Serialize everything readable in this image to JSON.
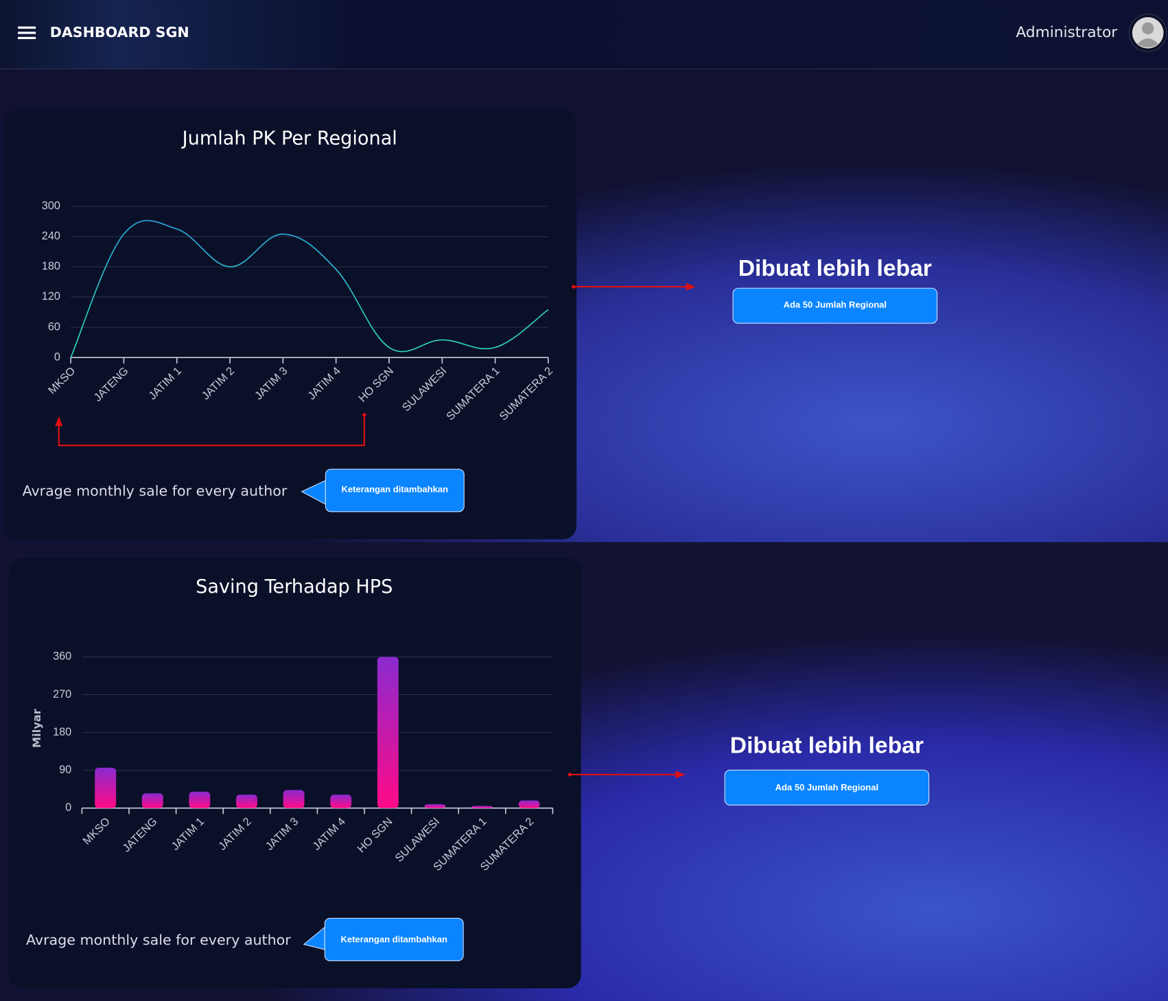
{
  "header": {
    "title": "DASHBOARD SGN",
    "user": "Administrator"
  },
  "chart_data": [
    {
      "type": "line",
      "title": "Jumlah PK Per Regional",
      "categories": [
        "MKSO",
        "JATENG",
        "JATIM 1",
        "JATIM 2",
        "JATIM 3",
        "JATIM 4",
        "HO SGN",
        "SULAWESI",
        "SUMATERA 1",
        "SUMATERA 2"
      ],
      "values": [
        0,
        245,
        255,
        180,
        245,
        175,
        20,
        35,
        20,
        95
      ],
      "color": "#2aa8e0",
      "color_end": "#2ee0b0",
      "ylim": [
        0,
        300
      ],
      "yticks": [
        0,
        60,
        120,
        180,
        240,
        300
      ],
      "grid": true,
      "caption": "Avrage monthly sale for every author"
    },
    {
      "type": "bar",
      "title": "Saving Terhadap HPS",
      "y_label": "Milyar",
      "categories": [
        "MKSO",
        "JATENG",
        "JATIM 1",
        "JATIM 2",
        "JATIM 3",
        "JATIM 4",
        "HO SGN",
        "SULAWESI",
        "SUMATERA 1",
        "SUMATERA 2"
      ],
      "values": [
        96,
        35,
        39,
        32,
        43,
        32,
        360,
        9,
        5,
        18
      ],
      "color": "#ff0a86",
      "color_top": "#8a2bd0",
      "ylim": [
        0,
        360
      ],
      "yticks": [
        0,
        90,
        180,
        270,
        360
      ],
      "grid": true,
      "caption": "Avrage monthly sale for every author"
    }
  ],
  "annotations": [
    {
      "note": "Dibuat lebih lebar",
      "button": "Ada 50 Jumlah Regional",
      "callout": "Keterangan ditambahkan"
    },
    {
      "note": "Dibuat lebih lebar",
      "button": "Ada 50 Jumlah Regional",
      "callout": "Keterangan ditambahkan"
    }
  ]
}
